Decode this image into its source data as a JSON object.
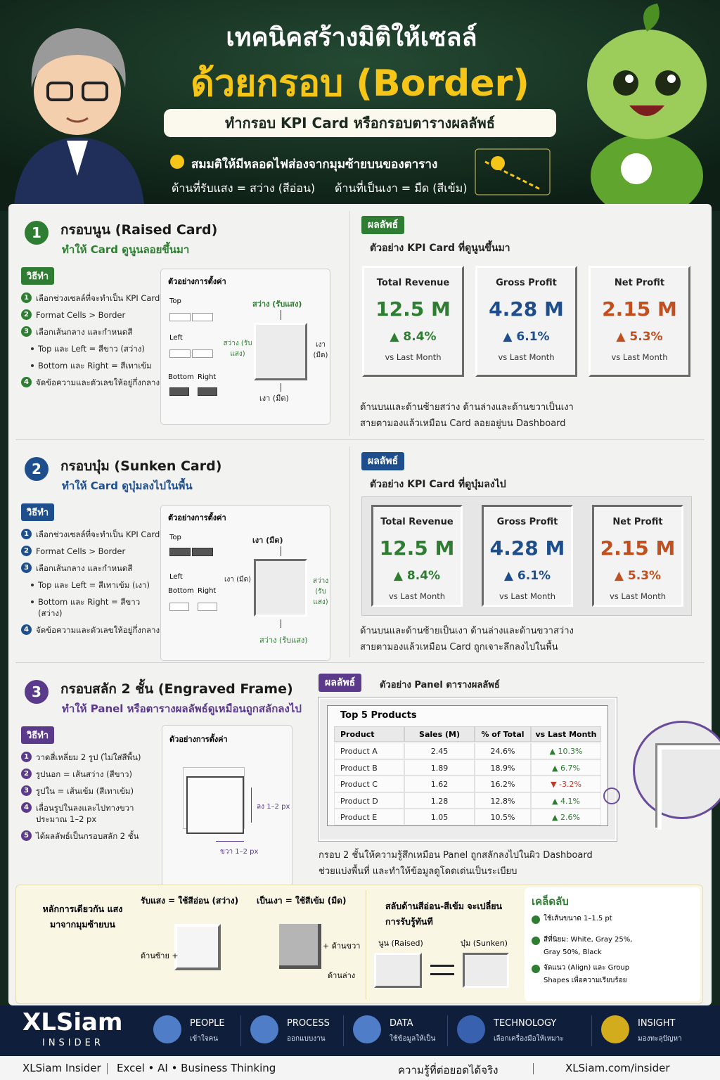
{
  "header": {
    "title_line1": "เทคนิคสร้างมิติให้เซลล์",
    "title_line2": "ด้วยกรอบ (Border)",
    "subtitle": "ทำกรอบ KPI Card หรือกรอบตารางผลลัพธ์",
    "assumption": "สมมติให้มีหลอดไฟส่องจากมุมซ้ายบนของตาราง",
    "light_side": "ด้านที่รับแสง = สว่าง (สีอ่อน)",
    "shadow_side": "ด้านที่เป็นเงา = มืด (สีเข้ม)"
  },
  "sections": [
    {
      "number": "1",
      "title": "กรอบนูน (Raised Card)",
      "desc": "ทำให้ Card ดูนูนลอยขึ้นมา",
      "how": "วิธีทำ",
      "steps": [
        {
          "marker": "1",
          "text": "เลือกช่วงเซลล์ที่จะทำเป็น KPI Card"
        },
        {
          "marker": "2",
          "text": "Format Cells > Border"
        },
        {
          "marker": "3",
          "text": "เลือกเส้นกลาง และกำหนดสี"
        },
        {
          "text": "Top และ Left = สีขาว (สว่าง)"
        },
        {
          "text": "Bottom และ Right = สีเทาเข้ม"
        },
        {
          "marker": "4",
          "text": "จัดข้อความและตัวเลขให้อยู่กึ่งกลาง"
        }
      ],
      "example": {
        "label": "ตัวอย่างการตั้งค่า",
        "top": "Top",
        "left": "Left",
        "bottom": "Bottom",
        "right": "Right",
        "top_note": "สว่าง (รับแสง)",
        "left_note": "สว่าง (รับแสง)",
        "right_note": "เงา (มืด)",
        "bottom_note": "เงา (มืด)"
      },
      "result_label": "ผลลัพธ์",
      "result_title": "ตัวอย่าง KPI Card ที่ดูนูนขึ้นมา",
      "cards": [
        {
          "title": "Total Revenue",
          "value": "12.5 M",
          "change": "▲ 8.4%",
          "note": "vs Last Month"
        },
        {
          "title": "Gross Profit",
          "value": "4.28 M",
          "change": "▲ 6.1%",
          "note": "vs Last Month"
        },
        {
          "title": "Net Profit",
          "value": "2.15 M",
          "change": "▲ 5.3%",
          "note": "vs Last Month"
        }
      ],
      "caption": [
        "ด้านบนและด้านซ้ายสว่าง ด้านล่างและด้านขวาเป็นเงา",
        "สายตามองแล้วเหมือน Card ลอยอยู่บน Dashboard"
      ]
    },
    {
      "number": "2",
      "title": "กรอบบุ๋ม (Sunken Card)",
      "desc": "ทำให้ Card ดูบุ๋มลงไปในพื้น",
      "how": "วิธีทำ",
      "steps": [
        {
          "marker": "1",
          "text": "เลือกช่วงเซลล์ที่จะทำเป็น KPI Card"
        },
        {
          "marker": "2",
          "text": "Format Cells > Border"
        },
        {
          "marker": "3",
          "text": "เลือกเส้นกลาง และกำหนดสี"
        },
        {
          "text": "Top และ Left = สีเทาเข้ม (เงา)"
        },
        {
          "text": "Bottom และ Right = สีขาว (สว่าง)"
        },
        {
          "marker": "4",
          "text": "จัดข้อความและตัวเลขให้อยู่กึ่งกลาง"
        }
      ],
      "example": {
        "label": "ตัวอย่างการตั้งค่า",
        "top": "Top",
        "left": "Left",
        "bottom": "Bottom",
        "right": "Right",
        "top_note": "เงา (มืด)",
        "left_note": "เงา (มืด)",
        "right_note": "สว่าง (รับแสง)",
        "bottom_note": "สว่าง (รับแสง)"
      },
      "result_label": "ผลลัพธ์",
      "result_title": "ตัวอย่าง KPI Card ที่ดูบุ๋มลงไป",
      "cards": [
        {
          "title": "Total Revenue",
          "value": "12.5 M",
          "change": "▲ 8.4%",
          "note": "vs Last Month"
        },
        {
          "title": "Gross Profit",
          "value": "4.28 M",
          "change": "▲ 6.1%",
          "note": "vs Last Month"
        },
        {
          "title": "Net Profit",
          "value": "2.15 M",
          "change": "▲ 5.3%",
          "note": "vs Last Month"
        }
      ],
      "caption": [
        "ด้านบนและด้านซ้ายเป็นเงา ด้านล่างและด้านขวาสว่าง",
        "สายตามองแล้วเหมือน Card ถูกเจาะลึกลงไปในพื้น"
      ]
    },
    {
      "number": "3",
      "title": "กรอบสลัก 2 ชั้น (Engraved Frame)",
      "desc": "ทำให้ Panel หรือตารางผลลัพธ์ดูเหมือนถูกสลักลงไป",
      "how": "วิธีทำ",
      "steps": [
        {
          "marker": "1",
          "text": "วาดสี่เหลี่ยม 2 รูป (ไม่ใส่สีพื้น)"
        },
        {
          "marker": "2",
          "text": "รูปนอก = เส้นสว่าง (สีขาว)"
        },
        {
          "marker": "3",
          "text": "รูปใน = เส้นเข้ม (สีเทาเข้ม)"
        },
        {
          "marker": "4",
          "text": "เลื่อนรูปในลงและไปทางขวา ประมาณ 1–2 px"
        },
        {
          "marker": "5",
          "text": "ได้ผลลัพธ์เป็นกรอบสลัก 2 ชั้น"
        }
      ],
      "example": {
        "label": "ตัวอย่างการตั้งค่า",
        "down": "ลง 1–2 px",
        "right_shift": "ขวา 1–2 px"
      },
      "result_label": "ผลลัพธ์",
      "result_title": "ตัวอย่าง Panel ตารางผลลัพธ์",
      "table": {
        "title": "Top 5 Products",
        "columns": [
          "Product",
          "Sales (M)",
          "% of Total",
          "vs Last Month"
        ],
        "rows": [
          [
            "Product A",
            "2.45",
            "24.6%",
            "▲ 10.3%"
          ],
          [
            "Product B",
            "1.89",
            "18.9%",
            "▲ 6.7%"
          ],
          [
            "Product C",
            "1.62",
            "16.2%",
            "▼ -3.2%"
          ],
          [
            "Product D",
            "1.28",
            "12.8%",
            "▲ 4.1%"
          ],
          [
            "Product E",
            "1.05",
            "10.5%",
            "▲ 2.6%"
          ]
        ]
      },
      "caption": [
        "กรอบ 2 ชั้นให้ความรู้สึกเหมือน Panel ถูกสลักลงไปในผิว Dashboard",
        "ช่วยแบ่งพื้นที่ และทำให้ข้อมูลดูโดดเด่นเป็นระเบียบ"
      ]
    }
  ],
  "summary": {
    "principle": "หลักการเดียวกัน แสงมาจากมุมซ้ายบน",
    "light_title": "รับแสง = ใช้สีอ่อน (สว่าง)",
    "light_note": "ด้านซ้าย +",
    "shadow_title": "เป็นเงา = ใช้สีเข้ม (มืด)",
    "shadow_right": "+ ด้านขวา",
    "shadow_bottom": "ด้านล่าง",
    "swap": "สลับด้านสีอ่อน-สีเข้ม จะเปลี่ยนการรับรู้ทันที",
    "raised": "นูน (Raised)",
    "sunken": "บุ๋ม (Sunken)",
    "tips_title": "เคล็ดลับ",
    "tips": [
      "ใช้เส้นขนาด 1–1.5 pt",
      "สีที่นิยม: White, Gray 25%, Gray 50%, Black",
      "จัดแนว (Align) และ Group Shapes เพื่อความเรียบร้อย"
    ]
  },
  "footer": {
    "brand": "XLSiam",
    "brand_sub": "INSIDER",
    "pillars": [
      {
        "title": "PEOPLE",
        "sub": "เข้าใจคน"
      },
      {
        "title": "PROCESS",
        "sub": "ออกแบบงาน"
      },
      {
        "title": "DATA",
        "sub": "ใช้ข้อมูลให้เป็น"
      },
      {
        "title": "TECHNOLOGY",
        "sub": "เลือกเครื่องมือให้เหมาะ"
      },
      {
        "title": "INSIGHT",
        "sub": "มองทะลุปัญหา"
      }
    ],
    "name": "XLSiam Insider",
    "tagline": "Excel • AI • Business Thinking",
    "motto": "ความรู้ที่ต่อยอดได้จริง",
    "url": "XLSiam.com/insider"
  }
}
